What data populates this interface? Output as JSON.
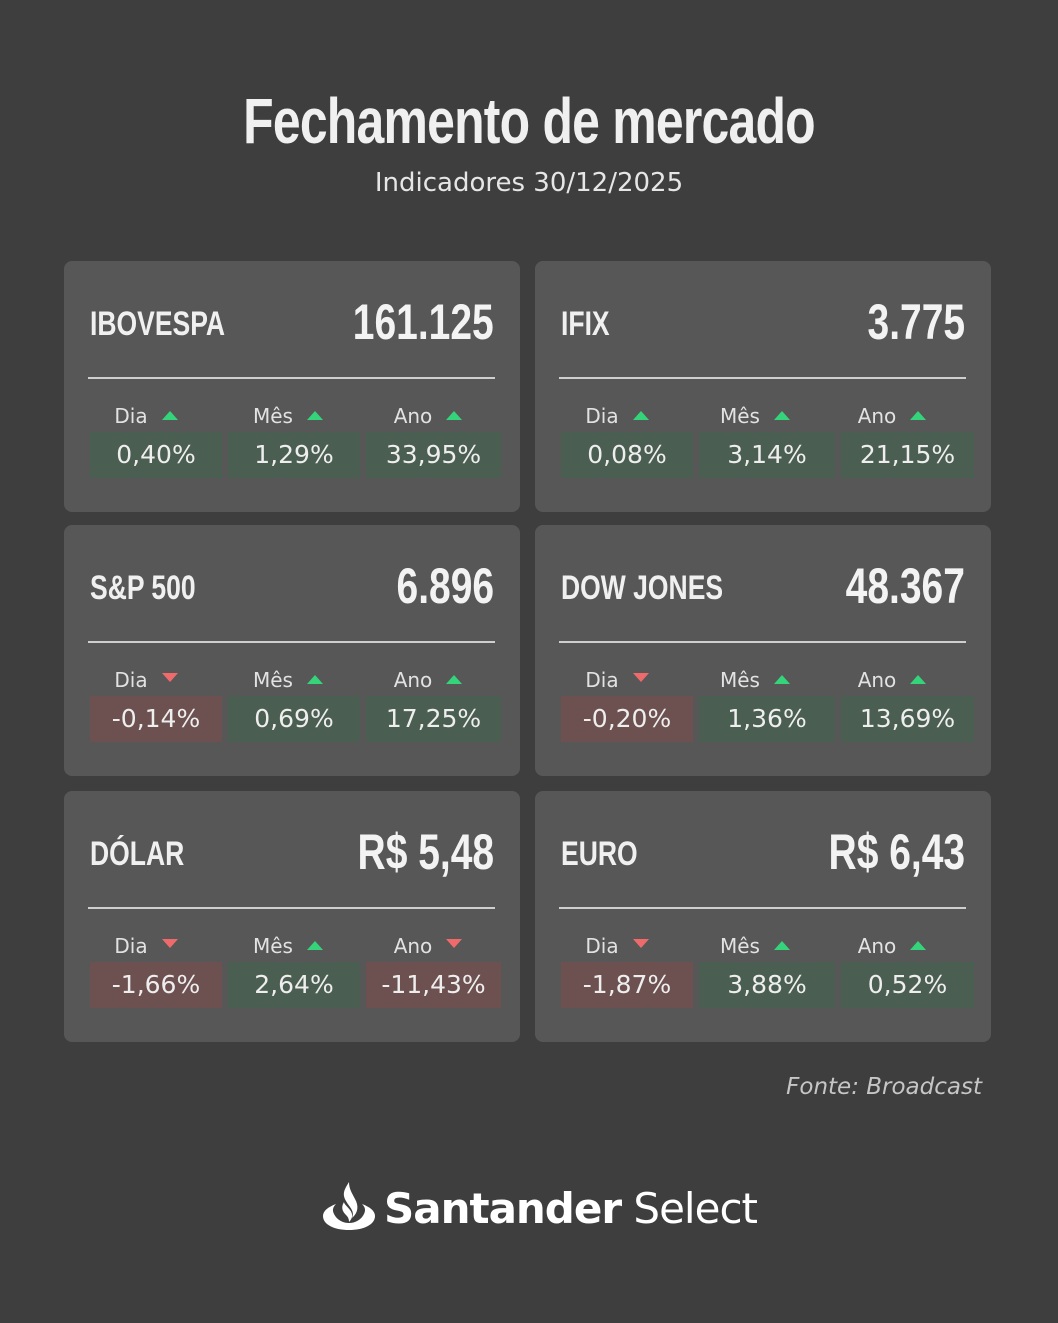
{
  "header": {
    "title": "Fechamento de mercado",
    "subtitle": "Indicadores 30/12/2025"
  },
  "colors": {
    "background": "#3e3e3e",
    "card": "#575757",
    "positive_cell": "#4b5e52",
    "negative_cell": "#6d5050",
    "arrow_up": "#35d47a",
    "arrow_down": "#ef6b6b"
  },
  "cards": [
    {
      "name": "IBOVESPA",
      "value": "161.125",
      "periods": [
        {
          "label": "Dia",
          "change": "0,40%",
          "direction": "up"
        },
        {
          "label": "Mês",
          "change": "1,29%",
          "direction": "up"
        },
        {
          "label": "Ano",
          "change": "33,95%",
          "direction": "up"
        }
      ]
    },
    {
      "name": "IFIX",
      "value": "3.775",
      "periods": [
        {
          "label": "Dia",
          "change": "0,08%",
          "direction": "up"
        },
        {
          "label": "Mês",
          "change": "3,14%",
          "direction": "up"
        },
        {
          "label": "Ano",
          "change": "21,15%",
          "direction": "up"
        }
      ]
    },
    {
      "name": "S&P 500",
      "value": "6.896",
      "periods": [
        {
          "label": "Dia",
          "change": "-0,14%",
          "direction": "down"
        },
        {
          "label": "Mês",
          "change": "0,69%",
          "direction": "up"
        },
        {
          "label": "Ano",
          "change": "17,25%",
          "direction": "up"
        }
      ]
    },
    {
      "name": "DOW JONES",
      "value": "48.367",
      "periods": [
        {
          "label": "Dia",
          "change": "-0,20%",
          "direction": "down"
        },
        {
          "label": "Mês",
          "change": "1,36%",
          "direction": "up"
        },
        {
          "label": "Ano",
          "change": "13,69%",
          "direction": "up"
        }
      ]
    },
    {
      "name": "DÓLAR",
      "value": "R$ 5,48",
      "periods": [
        {
          "label": "Dia",
          "change": "-1,66%",
          "direction": "down"
        },
        {
          "label": "Mês",
          "change": "2,64%",
          "direction": "up"
        },
        {
          "label": "Ano",
          "change": "-11,43%",
          "direction": "down"
        }
      ]
    },
    {
      "name": "EURO",
      "value": "R$ 6,43",
      "periods": [
        {
          "label": "Dia",
          "change": "-1,87%",
          "direction": "down"
        },
        {
          "label": "Mês",
          "change": "3,88%",
          "direction": "up"
        },
        {
          "label": "Ano",
          "change": "0,52%",
          "direction": "up"
        }
      ]
    }
  ],
  "footer": {
    "source": "Fonte: Broadcast",
    "brand_bold": "Santander",
    "brand_light": " Select",
    "logo_icon": "santander-flame-icon"
  }
}
